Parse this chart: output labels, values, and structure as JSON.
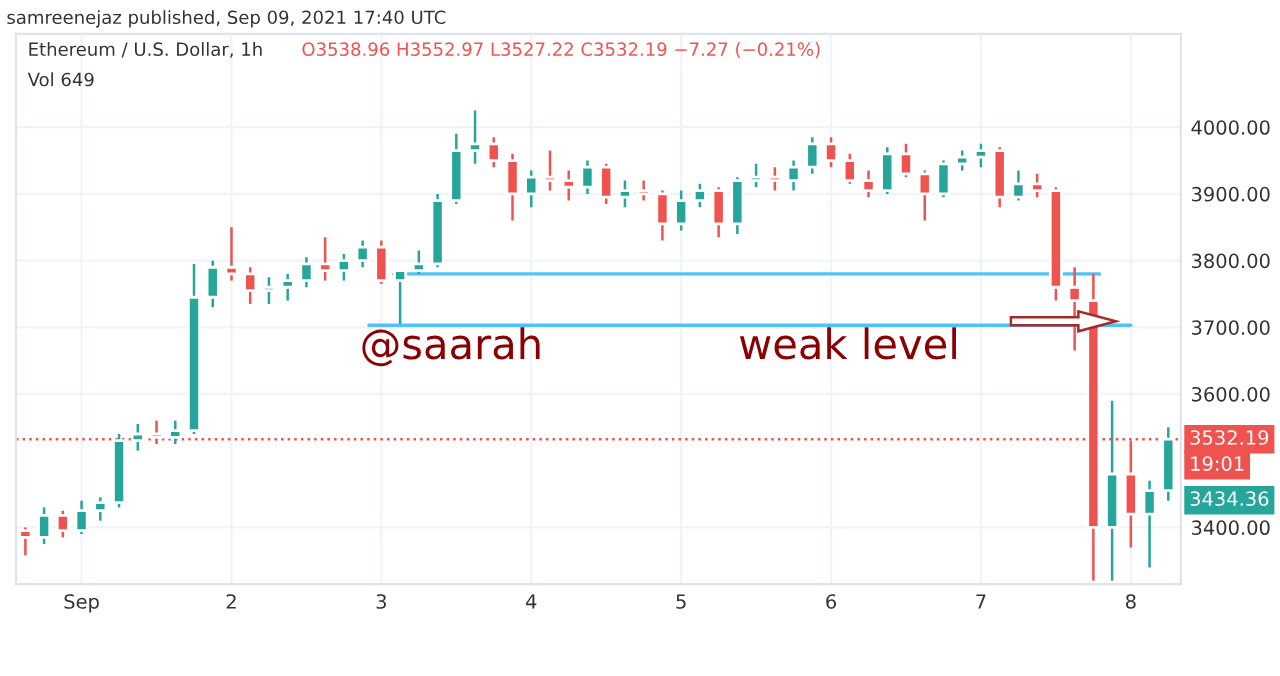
{
  "chart_data": {
    "type": "candlestick",
    "title": "Ethereum / U.S. Dollar, 1h",
    "subtitle": "samreenejaz published, Sep 09, 2021 17:40 UTC",
    "annotations": [
      "O3538.96 H3552.97 L3527.22 C3532.19 −7.27 (−0.21%)",
      "Vol 649",
      "@saarah",
      "weak level",
      "19:01",
      "3434.36"
    ],
    "x": [
      "2021-08-31T15:00",
      "2021-08-31T18:00",
      "2021-08-31T21:00",
      "2021-09-01T00:00",
      "2021-09-01T03:00",
      "2021-09-01T06:00",
      "2021-09-01T09:00",
      "2021-09-01T12:00",
      "2021-09-01T15:00",
      "2021-09-01T18:00",
      "2021-09-01T21:00",
      "2021-09-02T00:00",
      "2021-09-02T03:00",
      "2021-09-02T06:00",
      "2021-09-02T09:00",
      "2021-09-02T12:00",
      "2021-09-02T15:00",
      "2021-09-02T18:00",
      "2021-09-02T21:00",
      "2021-09-03T00:00",
      "2021-09-03T03:00",
      "2021-09-03T06:00",
      "2021-09-03T09:00",
      "2021-09-03T12:00",
      "2021-09-03T15:00",
      "2021-09-03T18:00",
      "2021-09-03T21:00",
      "2021-09-04T00:00",
      "2021-09-04T03:00",
      "2021-09-04T06:00",
      "2021-09-04T09:00",
      "2021-09-04T12:00",
      "2021-09-04T15:00",
      "2021-09-04T18:00",
      "2021-09-04T21:00",
      "2021-09-05T00:00",
      "2021-09-05T03:00",
      "2021-09-05T06:00",
      "2021-09-05T09:00",
      "2021-09-05T12:00",
      "2021-09-05T15:00",
      "2021-09-05T18:00",
      "2021-09-05T21:00",
      "2021-09-06T00:00",
      "2021-09-06T03:00",
      "2021-09-06T06:00",
      "2021-09-06T09:00",
      "2021-09-06T12:00",
      "2021-09-06T15:00",
      "2021-09-06T18:00",
      "2021-09-06T21:00",
      "2021-09-07T00:00",
      "2021-09-07T03:00",
      "2021-09-07T06:00",
      "2021-09-07T09:00",
      "2021-09-07T12:00",
      "2021-09-07T15:00",
      "2021-09-07T18:00",
      "2021-09-07T21:00",
      "2021-09-08T00:00",
      "2021-09-08T03:00",
      "2021-09-08T06:00"
    ],
    "ohlc": [
      [
        3395,
        3400,
        3358,
        3385
      ],
      [
        3385,
        3430,
        3375,
        3418
      ],
      [
        3418,
        3425,
        3385,
        3395
      ],
      [
        3395,
        3440,
        3390,
        3425
      ],
      [
        3425,
        3445,
        3410,
        3437
      ],
      [
        3437,
        3540,
        3430,
        3530
      ],
      [
        3530,
        3555,
        3515,
        3540
      ],
      [
        3540,
        3560,
        3525,
        3535
      ],
      [
        3535,
        3560,
        3525,
        3545
      ],
      [
        3545,
        3795,
        3540,
        3745
      ],
      [
        3745,
        3800,
        3730,
        3790
      ],
      [
        3790,
        3850,
        3770,
        3780
      ],
      [
        3780,
        3790,
        3735,
        3755
      ],
      [
        3755,
        3775,
        3735,
        3760
      ],
      [
        3760,
        3780,
        3740,
        3770
      ],
      [
        3770,
        3805,
        3760,
        3795
      ],
      [
        3795,
        3835,
        3770,
        3785
      ],
      [
        3785,
        3810,
        3770,
        3800
      ],
      [
        3800,
        3830,
        3790,
        3820
      ],
      [
        3820,
        3830,
        3765,
        3770
      ],
      [
        3770,
        3785,
        3705,
        3785
      ],
      [
        3785,
        3815,
        3780,
        3795
      ],
      [
        3795,
        3900,
        3790,
        3890
      ],
      [
        3890,
        3990,
        3885,
        3965
      ],
      [
        3965,
        4025,
        3945,
        3975
      ],
      [
        3975,
        3985,
        3940,
        3950
      ],
      [
        3950,
        3960,
        3860,
        3900
      ],
      [
        3900,
        3935,
        3880,
        3925
      ],
      [
        3925,
        3965,
        3905,
        3920
      ],
      [
        3920,
        3935,
        3890,
        3910
      ],
      [
        3910,
        3950,
        3900,
        3940
      ],
      [
        3940,
        3945,
        3885,
        3895
      ],
      [
        3895,
        3920,
        3880,
        3905
      ],
      [
        3905,
        3920,
        3890,
        3900
      ],
      [
        3900,
        3905,
        3830,
        3855
      ],
      [
        3855,
        3905,
        3845,
        3890
      ],
      [
        3890,
        3915,
        3880,
        3905
      ],
      [
        3905,
        3910,
        3835,
        3855
      ],
      [
        3855,
        3925,
        3840,
        3920
      ],
      [
        3920,
        3945,
        3910,
        3925
      ],
      [
        3925,
        3940,
        3905,
        3920
      ],
      [
        3920,
        3950,
        3905,
        3940
      ],
      [
        3940,
        3985,
        3930,
        3975
      ],
      [
        3975,
        3985,
        3940,
        3950
      ],
      [
        3950,
        3960,
        3915,
        3920
      ],
      [
        3920,
        3935,
        3895,
        3905
      ],
      [
        3905,
        3970,
        3900,
        3960
      ],
      [
        3960,
        3975,
        3925,
        3930
      ],
      [
        3930,
        3935,
        3860,
        3900
      ],
      [
        3900,
        3950,
        3895,
        3945
      ],
      [
        3945,
        3965,
        3935,
        3955
      ],
      [
        3955,
        3975,
        3940,
        3965
      ],
      [
        3965,
        3970,
        3880,
        3895
      ],
      [
        3895,
        3935,
        3890,
        3915
      ],
      [
        3915,
        3930,
        3895,
        3905
      ],
      [
        3905,
        3910,
        3740,
        3760
      ],
      [
        3760,
        3790,
        3665,
        3740
      ],
      [
        3740,
        3780,
        3320,
        3400
      ],
      [
        3400,
        3590,
        3320,
        3480
      ],
      [
        3480,
        3530,
        3370,
        3420
      ],
      [
        3420,
        3470,
        3340,
        3455
      ],
      [
        3455,
        3550,
        3440,
        3532.19
      ]
    ],
    "series": [
      {
        "type": "line",
        "color": "#4fc3f7",
        "x": [
          "2021-09-03T02:00",
          "2021-09-07T19:00"
        ],
        "values": [
          3780,
          3780
        ]
      },
      {
        "type": "line",
        "color": "#4fc3f7",
        "x": [
          "2021-09-02T22:00",
          "2021-09-08T00:00"
        ],
        "values": [
          3703,
          3703
        ]
      }
    ],
    "ref_lines": [
      {
        "axis": "y",
        "value": 3532.19,
        "label": "3532.19",
        "color": "#ef5350",
        "line_style": "dotted"
      }
    ],
    "xlim": [
      "2021-08-31T13:30",
      "2021-09-08T08:00"
    ],
    "xticks": [
      {
        "value": "2021-09-01",
        "label": "Sep"
      },
      {
        "value": "2021-09-02",
        "label": "2"
      },
      {
        "value": "2021-09-03",
        "label": "3"
      },
      {
        "value": "2021-09-04",
        "label": "4"
      },
      {
        "value": "2021-09-05",
        "label": "5"
      },
      {
        "value": "2021-09-06",
        "label": "6"
      },
      {
        "value": "2021-09-07",
        "label": "7"
      },
      {
        "value": "2021-09-08",
        "label": "8"
      }
    ],
    "ylim": [
      3315,
      4140
    ],
    "yticks": [
      {
        "value": 3400,
        "label": "3400.00"
      },
      {
        "value": 3600,
        "label": "3600.00"
      },
      {
        "value": 3700,
        "label": "3700.00"
      },
      {
        "value": 3800,
        "label": "3800.00"
      },
      {
        "value": 3900,
        "label": "3900.00"
      },
      {
        "value": 4000,
        "label": "4000.00"
      }
    ],
    "grid": true
  }
}
